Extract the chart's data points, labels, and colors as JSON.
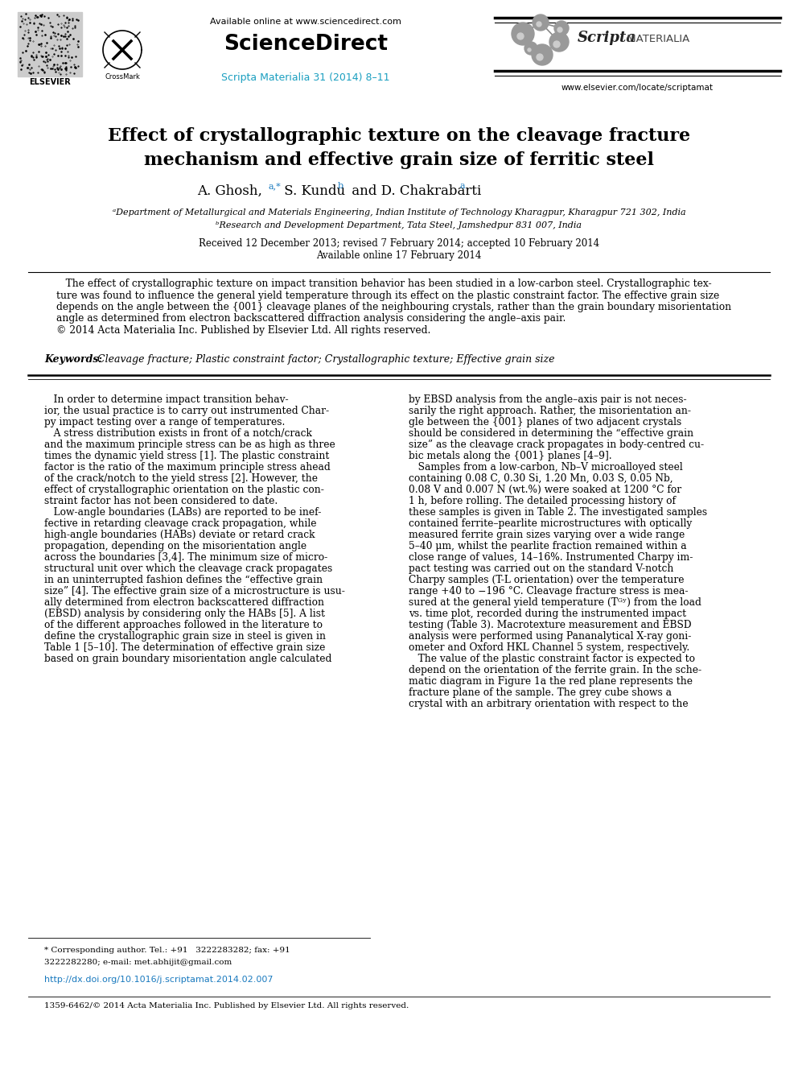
{
  "bg_color": "#ffffff",
  "header": {
    "available_online_text": "Available online at www.sciencedirect.com",
    "sciencedirect_text": "ScienceDirect",
    "journal_ref_text": "Scripta Materialia 31 (2014) 8–11",
    "journal_ref_color": "#1a9fc0",
    "website_text": "www.elsevier.com/locate/scriptamat",
    "elsevier_text": "ELSEVIER"
  },
  "title_line1": "Effect of crystallographic texture on the cleavage fracture",
  "title_line2": "mechanism and effective grain size of ferritic steel",
  "affil_a": "ᵃDepartment of Metallurgical and Materials Engineering, Indian Institute of Technology Kharagpur, Kharagpur 721 302, India",
  "affil_b": "ᵇResearch and Development Department, Tata Steel, Jamshedpur 831 007, India",
  "received_text": "Received 12 December 2013; revised 7 February 2014; accepted 10 February 2014",
  "available_text": "Available online 17 February 2014",
  "abstract_body": "   The effect of crystallographic texture on impact transition behavior has been studied in a low-carbon steel. Crystallographic tex-\nture was found to influence the general yield temperature through its effect on the plastic constraint factor. The effective grain size\ndepends on the angle between the {001} cleavage planes of the neighbouring crystals, rather than the grain boundary misorientation\nangle as determined from electron backscattered diffraction analysis considering the angle–axis pair.\n© 2014 Acta Materialia Inc. Published by Elsevier Ltd. All rights reserved.",
  "keywords_label": "Keywords:",
  "keywords_text": " Cleavage fracture; Plastic constraint factor; Crystallographic texture; Effective grain size",
  "col1_lines": [
    "   In order to determine impact transition behav-",
    "ior, the usual practice is to carry out instrumented Char-",
    "py impact testing over a range of temperatures.",
    "   A stress distribution exists in front of a notch/crack",
    "and the maximum principle stress can be as high as three",
    "times the dynamic yield stress [1]. The plastic constraint",
    "factor is the ratio of the maximum principle stress ahead",
    "of the crack/notch to the yield stress [2]. However, the",
    "effect of crystallographic orientation on the plastic con-",
    "straint factor has not been considered to date.",
    "   Low-angle boundaries (LABs) are reported to be inef-",
    "fective in retarding cleavage crack propagation, while",
    "high-angle boundaries (HABs) deviate or retard crack",
    "propagation, depending on the misorientation angle",
    "across the boundaries [3,4]. The minimum size of micro-",
    "structural unit over which the cleavage crack propagates",
    "in an uninterrupted fashion defines the “effective grain",
    "size” [4]. The effective grain size of a microstructure is usu-",
    "ally determined from electron backscattered diffraction",
    "(EBSD) analysis by considering only the HABs [5]. A list",
    "of the different approaches followed in the literature to",
    "define the crystallographic grain size in steel is given in",
    "Table 1 [5–10]. The determination of effective grain size",
    "based on grain boundary misorientation angle calculated"
  ],
  "col2_lines": [
    "by EBSD analysis from the angle–axis pair is not neces-",
    "sarily the right approach. Rather, the misorientation an-",
    "gle between the {001} planes of two adjacent crystals",
    "should be considered in determining the “effective grain",
    "size” as the cleavage crack propagates in body-centred cu-",
    "bic metals along the {001} planes [4–9].",
    "   Samples from a low-carbon, Nb–V microalloyed steel",
    "containing 0.08 C, 0.30 Si, 1.20 Mn, 0.03 S, 0.05 Nb,",
    "0.08 V and 0.007 N (wt.%) were soaked at 1200 °C for",
    "1 h, before rolling. The detailed processing history of",
    "these samples is given in Table 2. The investigated samples",
    "contained ferrite–pearlite microstructures with optically",
    "measured ferrite grain sizes varying over a wide range",
    "5–40 μm, whilst the pearlite fraction remained within a",
    "close range of values, 14–16%. Instrumented Charpy im-",
    "pact testing was carried out on the standard V-notch",
    "Charpy samples (T-L orientation) over the temperature",
    "range +40 to −196 °C. Cleavage fracture stress is mea-",
    "sured at the general yield temperature (Tᴳʸ) from the load",
    "vs. time plot, recorded during the instrumented impact",
    "testing (Table 3). Macrotexture measurement and EBSD",
    "analysis were performed using Pananalytical X-ray goni-",
    "ometer and Oxford HKL Channel 5 system, respectively.",
    "   The value of the plastic constraint factor is expected to",
    "depend on the orientation of the ferrite grain. In the sche-",
    "matic diagram in Figure 1a the red plane represents the",
    "fracture plane of the sample. The grey cube shows a",
    "crystal with an arbitrary orientation with respect to the"
  ],
  "footer_note": "* Corresponding author. Tel.: +91   3222283282; fax: +91",
  "footer_note2": "3222282280; e-mail: met.abhijit@gmail.com",
  "footer_doi": "http://dx.doi.org/10.1016/j.scriptamat.2014.02.007",
  "footer_issn": "1359-6462/© 2014 Acta Materialia Inc. Published by Elsevier Ltd. All rights reserved.",
  "sup_color": "#1a7abf",
  "link_color": "#1a7abf"
}
